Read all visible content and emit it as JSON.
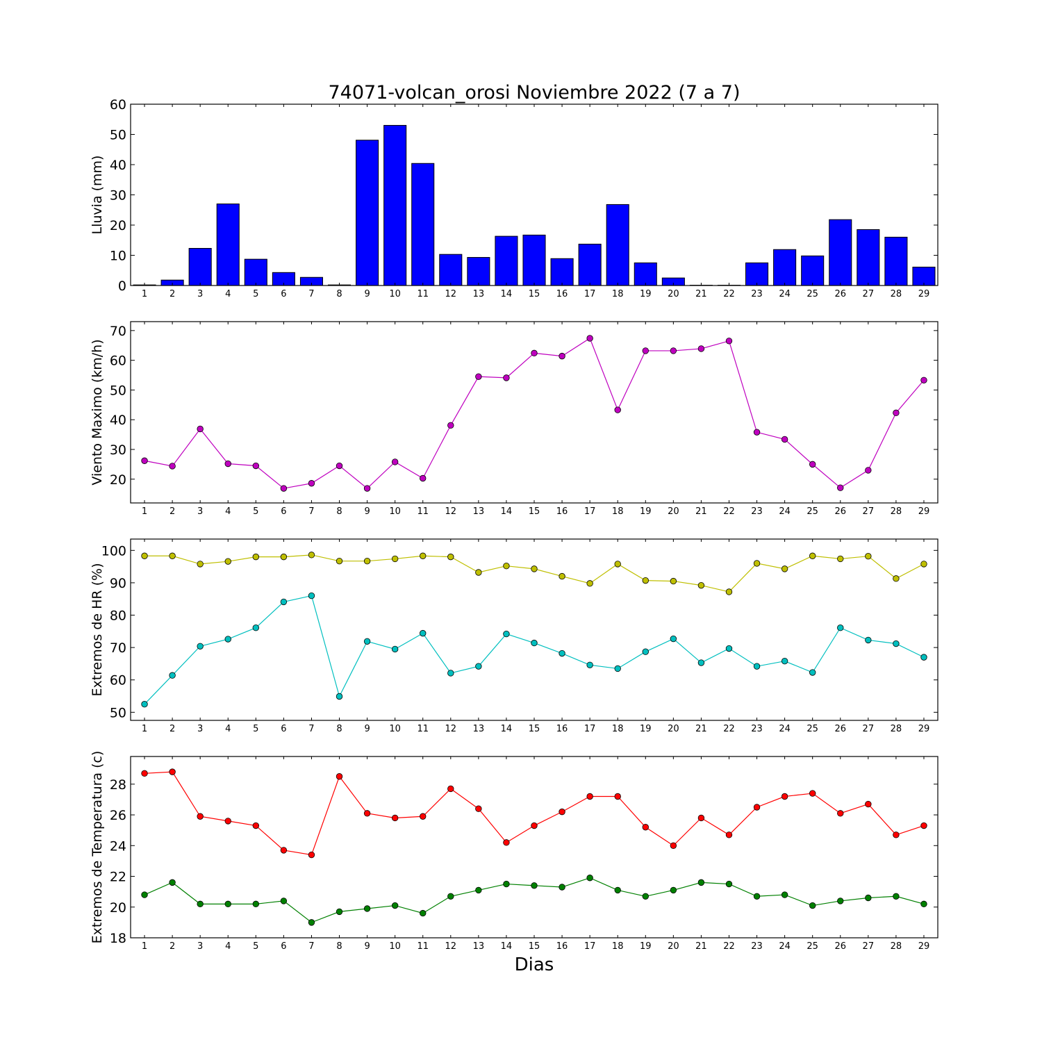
{
  "chart_data": {
    "title": "74071-volcan_orosi Noviembre 2022  (7 a 7)",
    "xlabel": "Dias",
    "days": [
      1,
      2,
      3,
      4,
      5,
      6,
      7,
      8,
      9,
      10,
      11,
      12,
      13,
      14,
      15,
      16,
      17,
      18,
      19,
      20,
      21,
      22,
      23,
      24,
      25,
      26,
      27,
      28,
      29
    ],
    "panels": [
      {
        "type": "bar",
        "ylabel": "Lluvia (mm)",
        "ylim": [
          0,
          60
        ],
        "yticks": [
          0,
          10,
          20,
          30,
          40,
          50,
          60
        ],
        "series": [
          {
            "color": "#0000ff",
            "values": [
              0.2,
              1.8,
              12.3,
              27.0,
              8.7,
              4.3,
              2.7,
              0.2,
              48.1,
              53.0,
              40.4,
              10.3,
              9.3,
              16.3,
              16.7,
              8.9,
              13.7,
              26.8,
              7.5,
              2.5,
              0.1,
              0.1,
              7.5,
              11.9,
              9.8,
              21.8,
              18.5,
              16.0,
              6.1
            ]
          }
        ]
      },
      {
        "type": "line",
        "ylabel": "Viento Maximo (km/h)",
        "ylim": [
          12,
          73
        ],
        "yticks": [
          20,
          30,
          40,
          50,
          60,
          70
        ],
        "series": [
          {
            "color": "#bf00bf",
            "values": [
              26.2,
              24.4,
              36.9,
              25.2,
              24.5,
              16.9,
              18.6,
              24.5,
              16.9,
              25.8,
              20.3,
              38.1,
              54.5,
              54.1,
              62.4,
              61.4,
              67.4,
              43.3,
              63.2,
              63.2,
              63.9,
              66.5,
              35.8,
              33.4,
              25.0,
              17.1,
              23.0,
              42.3,
              53.3
            ]
          }
        ]
      },
      {
        "type": "line",
        "ylabel": "Extremos de HR (%)",
        "ylim": [
          47.5,
          103.5
        ],
        "yticks": [
          50,
          60,
          70,
          80,
          90,
          100
        ],
        "series": [
          {
            "color": "#bfbf00",
            "values": [
              98.3,
              98.3,
              95.8,
              96.6,
              98.0,
              98.0,
              98.6,
              96.7,
              96.7,
              97.4,
              98.3,
              98.0,
              93.2,
              95.2,
              94.3,
              92.0,
              89.8,
              95.8,
              90.7,
              90.5,
              89.2,
              87.2,
              96.0,
              94.3,
              98.3,
              97.4,
              98.2,
              91.3,
              95.8
            ]
          },
          {
            "color": "#00bfbf",
            "values": [
              52.5,
              61.4,
              70.4,
              72.6,
              76.1,
              84.1,
              86.0,
              54.9,
              71.9,
              69.5,
              74.4,
              62.1,
              64.2,
              74.2,
              71.4,
              68.2,
              64.6,
              63.5,
              68.7,
              72.7,
              65.3,
              69.7,
              64.2,
              65.8,
              62.3,
              76.1,
              72.3,
              71.2,
              67.0
            ]
          }
        ]
      },
      {
        "type": "line",
        "ylabel": "Extremos de Temperatura (c)",
        "ylim": [
          18,
          29.8
        ],
        "yticks": [
          18,
          20,
          22,
          24,
          26,
          28
        ],
        "series": [
          {
            "color": "#ff0000",
            "values": [
              28.7,
              28.8,
              25.9,
              25.6,
              25.3,
              23.7,
              23.4,
              28.5,
              26.1,
              25.8,
              25.9,
              27.7,
              26.4,
              24.2,
              25.3,
              26.2,
              27.2,
              27.2,
              25.2,
              24.0,
              25.8,
              24.7,
              26.5,
              27.2,
              27.4,
              26.1,
              26.7,
              24.7,
              25.3
            ]
          },
          {
            "color": "#008000",
            "values": [
              20.8,
              21.6,
              20.2,
              20.2,
              20.2,
              20.4,
              19.0,
              19.7,
              19.9,
              20.1,
              19.6,
              20.7,
              21.1,
              21.5,
              21.4,
              21.3,
              21.9,
              21.1,
              20.7,
              21.1,
              21.6,
              21.5,
              20.7,
              20.8,
              20.1,
              20.4,
              20.6,
              20.7,
              20.2
            ]
          }
        ]
      }
    ]
  }
}
